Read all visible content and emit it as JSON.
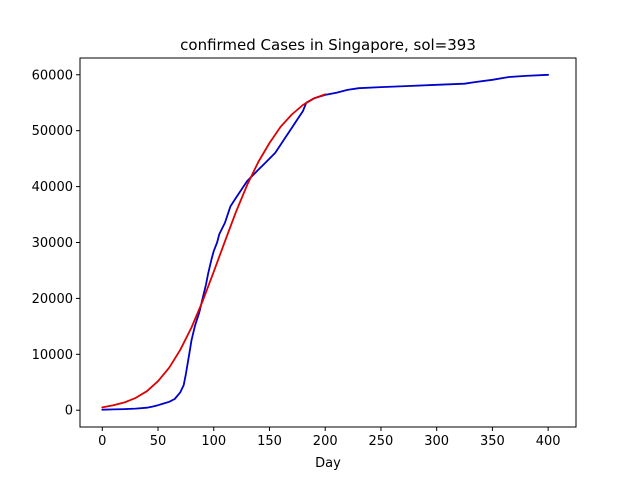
{
  "chart_data": {
    "type": "line",
    "title": "confirmed Cases in Singapore, sol=393",
    "xlabel": "Day",
    "ylabel": "",
    "xlim": [
      -20,
      425
    ],
    "ylim": [
      -3000,
      63000
    ],
    "xticks": [
      0,
      50,
      100,
      150,
      200,
      250,
      300,
      350,
      400
    ],
    "yticks": [
      0,
      10000,
      20000,
      30000,
      40000,
      50000,
      60000
    ],
    "grid": false,
    "legend": "none",
    "series": [
      {
        "color": "#0000cc",
        "points": [
          [
            0,
            100
          ],
          [
            10,
            150
          ],
          [
            20,
            200
          ],
          [
            30,
            300
          ],
          [
            40,
            450
          ],
          [
            45,
            650
          ],
          [
            50,
            900
          ],
          [
            55,
            1200
          ],
          [
            60,
            1500
          ],
          [
            65,
            2000
          ],
          [
            70,
            3200
          ],
          [
            73,
            4500
          ],
          [
            75,
            6500
          ],
          [
            78,
            10000
          ],
          [
            80,
            12500
          ],
          [
            83,
            15000
          ],
          [
            87,
            17500
          ],
          [
            90,
            20000
          ],
          [
            93,
            22500
          ],
          [
            95,
            24500
          ],
          [
            98,
            27000
          ],
          [
            100,
            28500
          ],
          [
            103,
            30000
          ],
          [
            105,
            31500
          ],
          [
            110,
            33500
          ],
          [
            115,
            36500
          ],
          [
            120,
            38000
          ],
          [
            125,
            39500
          ],
          [
            130,
            41000
          ],
          [
            135,
            42000
          ],
          [
            140,
            43000
          ],
          [
            145,
            44000
          ],
          [
            150,
            45000
          ],
          [
            155,
            46000
          ],
          [
            160,
            47500
          ],
          [
            165,
            49000
          ],
          [
            170,
            50500
          ],
          [
            175,
            52000
          ],
          [
            180,
            53500
          ],
          [
            183,
            55000
          ],
          [
            190,
            55800
          ],
          [
            200,
            56400
          ],
          [
            210,
            56800
          ],
          [
            220,
            57300
          ],
          [
            230,
            57600
          ],
          [
            250,
            57800
          ],
          [
            275,
            58000
          ],
          [
            300,
            58200
          ],
          [
            325,
            58400
          ],
          [
            335,
            58700
          ],
          [
            350,
            59100
          ],
          [
            365,
            59600
          ],
          [
            380,
            59800
          ],
          [
            400,
            60000
          ]
        ]
      },
      {
        "color": "#dd0000",
        "points": [
          [
            0,
            500
          ],
          [
            10,
            900
          ],
          [
            20,
            1400
          ],
          [
            30,
            2200
          ],
          [
            40,
            3400
          ],
          [
            50,
            5200
          ],
          [
            60,
            7600
          ],
          [
            70,
            10800
          ],
          [
            80,
            14800
          ],
          [
            90,
            19500
          ],
          [
            100,
            24800
          ],
          [
            110,
            30200
          ],
          [
            120,
            35500
          ],
          [
            130,
            40300
          ],
          [
            140,
            44400
          ],
          [
            150,
            47800
          ],
          [
            160,
            50700
          ],
          [
            170,
            52900
          ],
          [
            180,
            54600
          ],
          [
            190,
            55800
          ],
          [
            200,
            56500
          ]
        ]
      }
    ]
  }
}
